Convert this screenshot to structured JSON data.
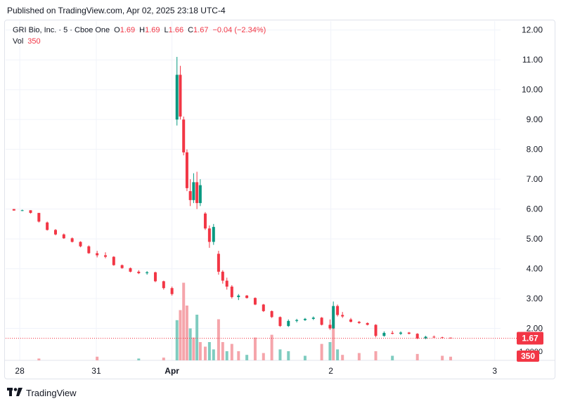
{
  "published": "Published on TradingView.com, Apr 02, 2025 23:18 UTC-4",
  "legend": {
    "symbol": "GRI Bio, Inc. · 5 · Cboe One",
    "o_label": "O",
    "o": "1.69",
    "h_label": "H",
    "h": "1.69",
    "l_label": "L",
    "l": "1.66",
    "c_label": "C",
    "c": "1.67",
    "change": "−0.04 (−2.34%)",
    "vol_label": "Vol",
    "vol": "350"
  },
  "price_tag": "1.67",
  "volume_tag": "350",
  "volume_axis_label": "1.0000",
  "brand": "TradingView",
  "colors": {
    "up": "#089981",
    "down": "#f23645",
    "up_vol": "#7fccc0",
    "down_vol": "#f5a5ab",
    "grid": "#f0f3fa",
    "last": "#f23645"
  },
  "chart_data": {
    "type": "candlestick",
    "title": "GRI Bio, Inc. · 5 · Cboe One",
    "y_ticks": [
      "12.00",
      "11.00",
      "10.00",
      "9.00",
      "8.00",
      "7.00",
      "6.00",
      "5.00",
      "4.00",
      "3.00",
      "2.00"
    ],
    "ylim": [
      1.0,
      12.3
    ],
    "x_ticks": [
      "28",
      "31",
      "Apr",
      "2",
      "3"
    ],
    "x_tick_positions": [
      0.7,
      9.9,
      19.0,
      38.1,
      57.8
    ],
    "xlim": [
      -1,
      58.5
    ],
    "last_price": 1.67,
    "candles": [
      [
        0,
        6.0,
        6.0,
        5.95,
        5.95
      ],
      [
        1,
        5.95,
        5.98,
        5.93,
        5.96
      ],
      [
        2,
        5.96,
        5.96,
        5.85,
        5.87
      ],
      [
        3,
        5.87,
        5.87,
        5.55,
        5.58
      ],
      [
        4,
        5.55,
        5.58,
        5.28,
        5.3
      ],
      [
        5,
        5.3,
        5.33,
        5.12,
        5.15
      ],
      [
        6,
        5.15,
        5.18,
        5.0,
        5.02
      ],
      [
        7,
        5.02,
        5.05,
        4.88,
        4.9
      ],
      [
        8,
        4.9,
        4.92,
        4.72,
        4.75
      ],
      [
        9,
        4.75,
        4.78,
        4.5,
        4.52
      ],
      [
        10,
        4.52,
        4.6,
        4.38,
        4.45
      ],
      [
        11,
        4.45,
        4.55,
        4.35,
        4.4
      ],
      [
        12,
        4.4,
        4.42,
        4.1,
        4.12
      ],
      [
        13,
        4.12,
        4.14,
        4.0,
        4.02
      ],
      [
        14,
        4.02,
        4.04,
        3.88,
        3.9
      ],
      [
        15,
        3.9,
        3.95,
        3.82,
        3.85
      ],
      [
        16,
        3.85,
        3.92,
        3.8,
        3.88
      ],
      [
        17,
        3.88,
        3.9,
        3.55,
        3.58
      ],
      [
        18,
        3.58,
        3.6,
        3.3,
        3.35
      ],
      [
        19,
        3.35,
        3.4,
        3.1,
        3.15
      ],
      [
        19.6,
        9.0,
        11.1,
        8.8,
        10.5
      ],
      [
        20.0,
        10.5,
        10.8,
        9.0,
        9.1
      ],
      [
        20.4,
        9.0,
        9.1,
        7.8,
        7.9
      ],
      [
        20.8,
        7.9,
        8.0,
        6.6,
        6.7
      ],
      [
        21.2,
        6.6,
        7.0,
        6.1,
        6.3
      ],
      [
        21.6,
        6.3,
        7.2,
        6.2,
        6.9
      ],
      [
        22.0,
        6.9,
        7.25,
        6.0,
        6.2
      ],
      [
        22.4,
        6.2,
        7.0,
        6.1,
        6.8
      ],
      [
        23.0,
        5.85,
        5.9,
        5.3,
        5.35
      ],
      [
        23.5,
        5.35,
        5.45,
        4.7,
        4.9
      ],
      [
        24.0,
        4.9,
        5.5,
        4.8,
        5.4
      ],
      [
        24.6,
        4.5,
        4.6,
        3.8,
        3.9
      ],
      [
        25.1,
        3.9,
        3.95,
        3.5,
        3.6
      ],
      [
        25.6,
        3.6,
        3.7,
        3.3,
        3.4
      ],
      [
        26.2,
        3.4,
        3.45,
        3.0,
        3.05
      ],
      [
        27,
        3.05,
        3.15,
        2.95,
        3.1
      ],
      [
        28,
        3.1,
        3.12,
        3.0,
        3.02
      ],
      [
        29,
        3.02,
        3.04,
        2.78,
        2.8
      ],
      [
        30,
        2.8,
        2.82,
        2.55,
        2.58
      ],
      [
        31,
        2.58,
        2.6,
        2.35,
        2.38
      ],
      [
        32,
        2.38,
        2.4,
        2.05,
        2.08
      ],
      [
        33,
        2.08,
        2.3,
        2.05,
        2.25
      ],
      [
        34,
        2.25,
        2.32,
        2.2,
        2.28
      ],
      [
        35,
        2.28,
        2.35,
        2.25,
        2.32
      ],
      [
        36,
        2.32,
        2.4,
        2.28,
        2.36
      ],
      [
        37,
        2.36,
        2.38,
        2.1,
        2.12
      ],
      [
        38,
        2.12,
        2.3,
        1.95,
        2.0
      ],
      [
        38.4,
        2.0,
        2.9,
        1.98,
        2.75
      ],
      [
        38.9,
        2.75,
        2.8,
        2.4,
        2.45
      ],
      [
        39.5,
        2.45,
        2.55,
        2.35,
        2.4
      ],
      [
        40.5,
        2.3,
        2.35,
        2.2,
        2.22
      ],
      [
        41.5,
        2.22,
        2.25,
        2.15,
        2.18
      ],
      [
        42.5,
        2.18,
        2.2,
        2.1,
        2.12
      ],
      [
        43.5,
        2.12,
        2.14,
        1.7,
        1.75
      ],
      [
        44.5,
        1.75,
        1.9,
        1.72,
        1.85
      ],
      [
        45.5,
        1.85,
        1.92,
        1.8,
        1.82
      ],
      [
        46.5,
        1.82,
        1.9,
        1.78,
        1.86
      ],
      [
        47.5,
        1.86,
        1.88,
        1.8,
        1.82
      ],
      [
        48.5,
        1.82,
        1.84,
        1.64,
        1.66
      ],
      [
        49.5,
        1.66,
        1.75,
        1.64,
        1.72
      ],
      [
        50.5,
        1.72,
        1.76,
        1.68,
        1.7
      ],
      [
        51.5,
        1.7,
        1.72,
        1.66,
        1.68
      ],
      [
        52.5,
        1.69,
        1.69,
        1.66,
        1.67
      ]
    ],
    "volumes": [
      [
        19.6,
        0.44,
        1
      ],
      [
        20.0,
        0.55,
        0
      ],
      [
        20.4,
        0.85,
        0
      ],
      [
        20.8,
        0.6,
        0
      ],
      [
        21.2,
        0.35,
        1
      ],
      [
        21.6,
        0.25,
        0
      ],
      [
        22.0,
        0.5,
        1
      ],
      [
        22.4,
        0.2,
        0
      ],
      [
        23.0,
        0.15,
        0
      ],
      [
        23.5,
        0.2,
        1
      ],
      [
        24.0,
        0.12,
        1
      ],
      [
        24.6,
        0.45,
        0
      ],
      [
        25.1,
        0.2,
        0
      ],
      [
        25.6,
        0.1,
        1
      ],
      [
        26.2,
        0.18,
        0
      ],
      [
        27,
        0.1,
        0
      ],
      [
        28,
        0.06,
        1
      ],
      [
        29,
        0.25,
        0
      ],
      [
        30,
        0.08,
        0
      ],
      [
        31,
        0.28,
        0
      ],
      [
        32,
        0.12,
        1
      ],
      [
        33,
        0.1,
        1
      ],
      [
        35,
        0.05,
        1
      ],
      [
        37,
        0.18,
        0
      ],
      [
        38,
        0.2,
        1
      ],
      [
        38.4,
        0.55,
        0
      ],
      [
        38.9,
        0.12,
        1
      ],
      [
        39.5,
        0.06,
        0
      ],
      [
        41.5,
        0.08,
        0
      ],
      [
        43.5,
        0.1,
        0
      ],
      [
        45.5,
        0.05,
        1
      ],
      [
        48.5,
        0.07,
        0
      ],
      [
        51.5,
        0.05,
        0
      ],
      [
        52.5,
        0.04,
        0
      ],
      [
        3,
        0.02,
        0
      ],
      [
        10,
        0.04,
        0
      ],
      [
        15,
        0.02,
        1
      ],
      [
        18,
        0.03,
        0
      ]
    ]
  }
}
